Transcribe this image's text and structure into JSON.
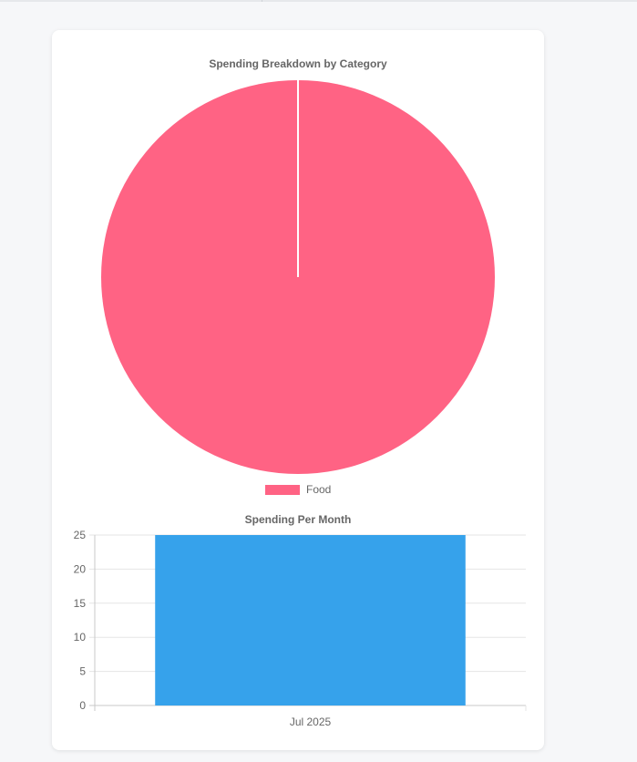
{
  "chart_data": [
    {
      "type": "pie",
      "title": "Spending Breakdown by Category",
      "categories": [
        "Food"
      ],
      "values": [
        100
      ],
      "colors": [
        "#ff6384"
      ],
      "legend": "bottom"
    },
    {
      "type": "bar",
      "title": "Spending Per Month",
      "categories": [
        "Jul 2025"
      ],
      "values": [
        25
      ],
      "ylim": [
        0,
        25
      ],
      "yticks": [
        "25",
        "20",
        "15",
        "10",
        "5",
        "0"
      ],
      "color": "#36a2eb",
      "grid": true
    }
  ]
}
